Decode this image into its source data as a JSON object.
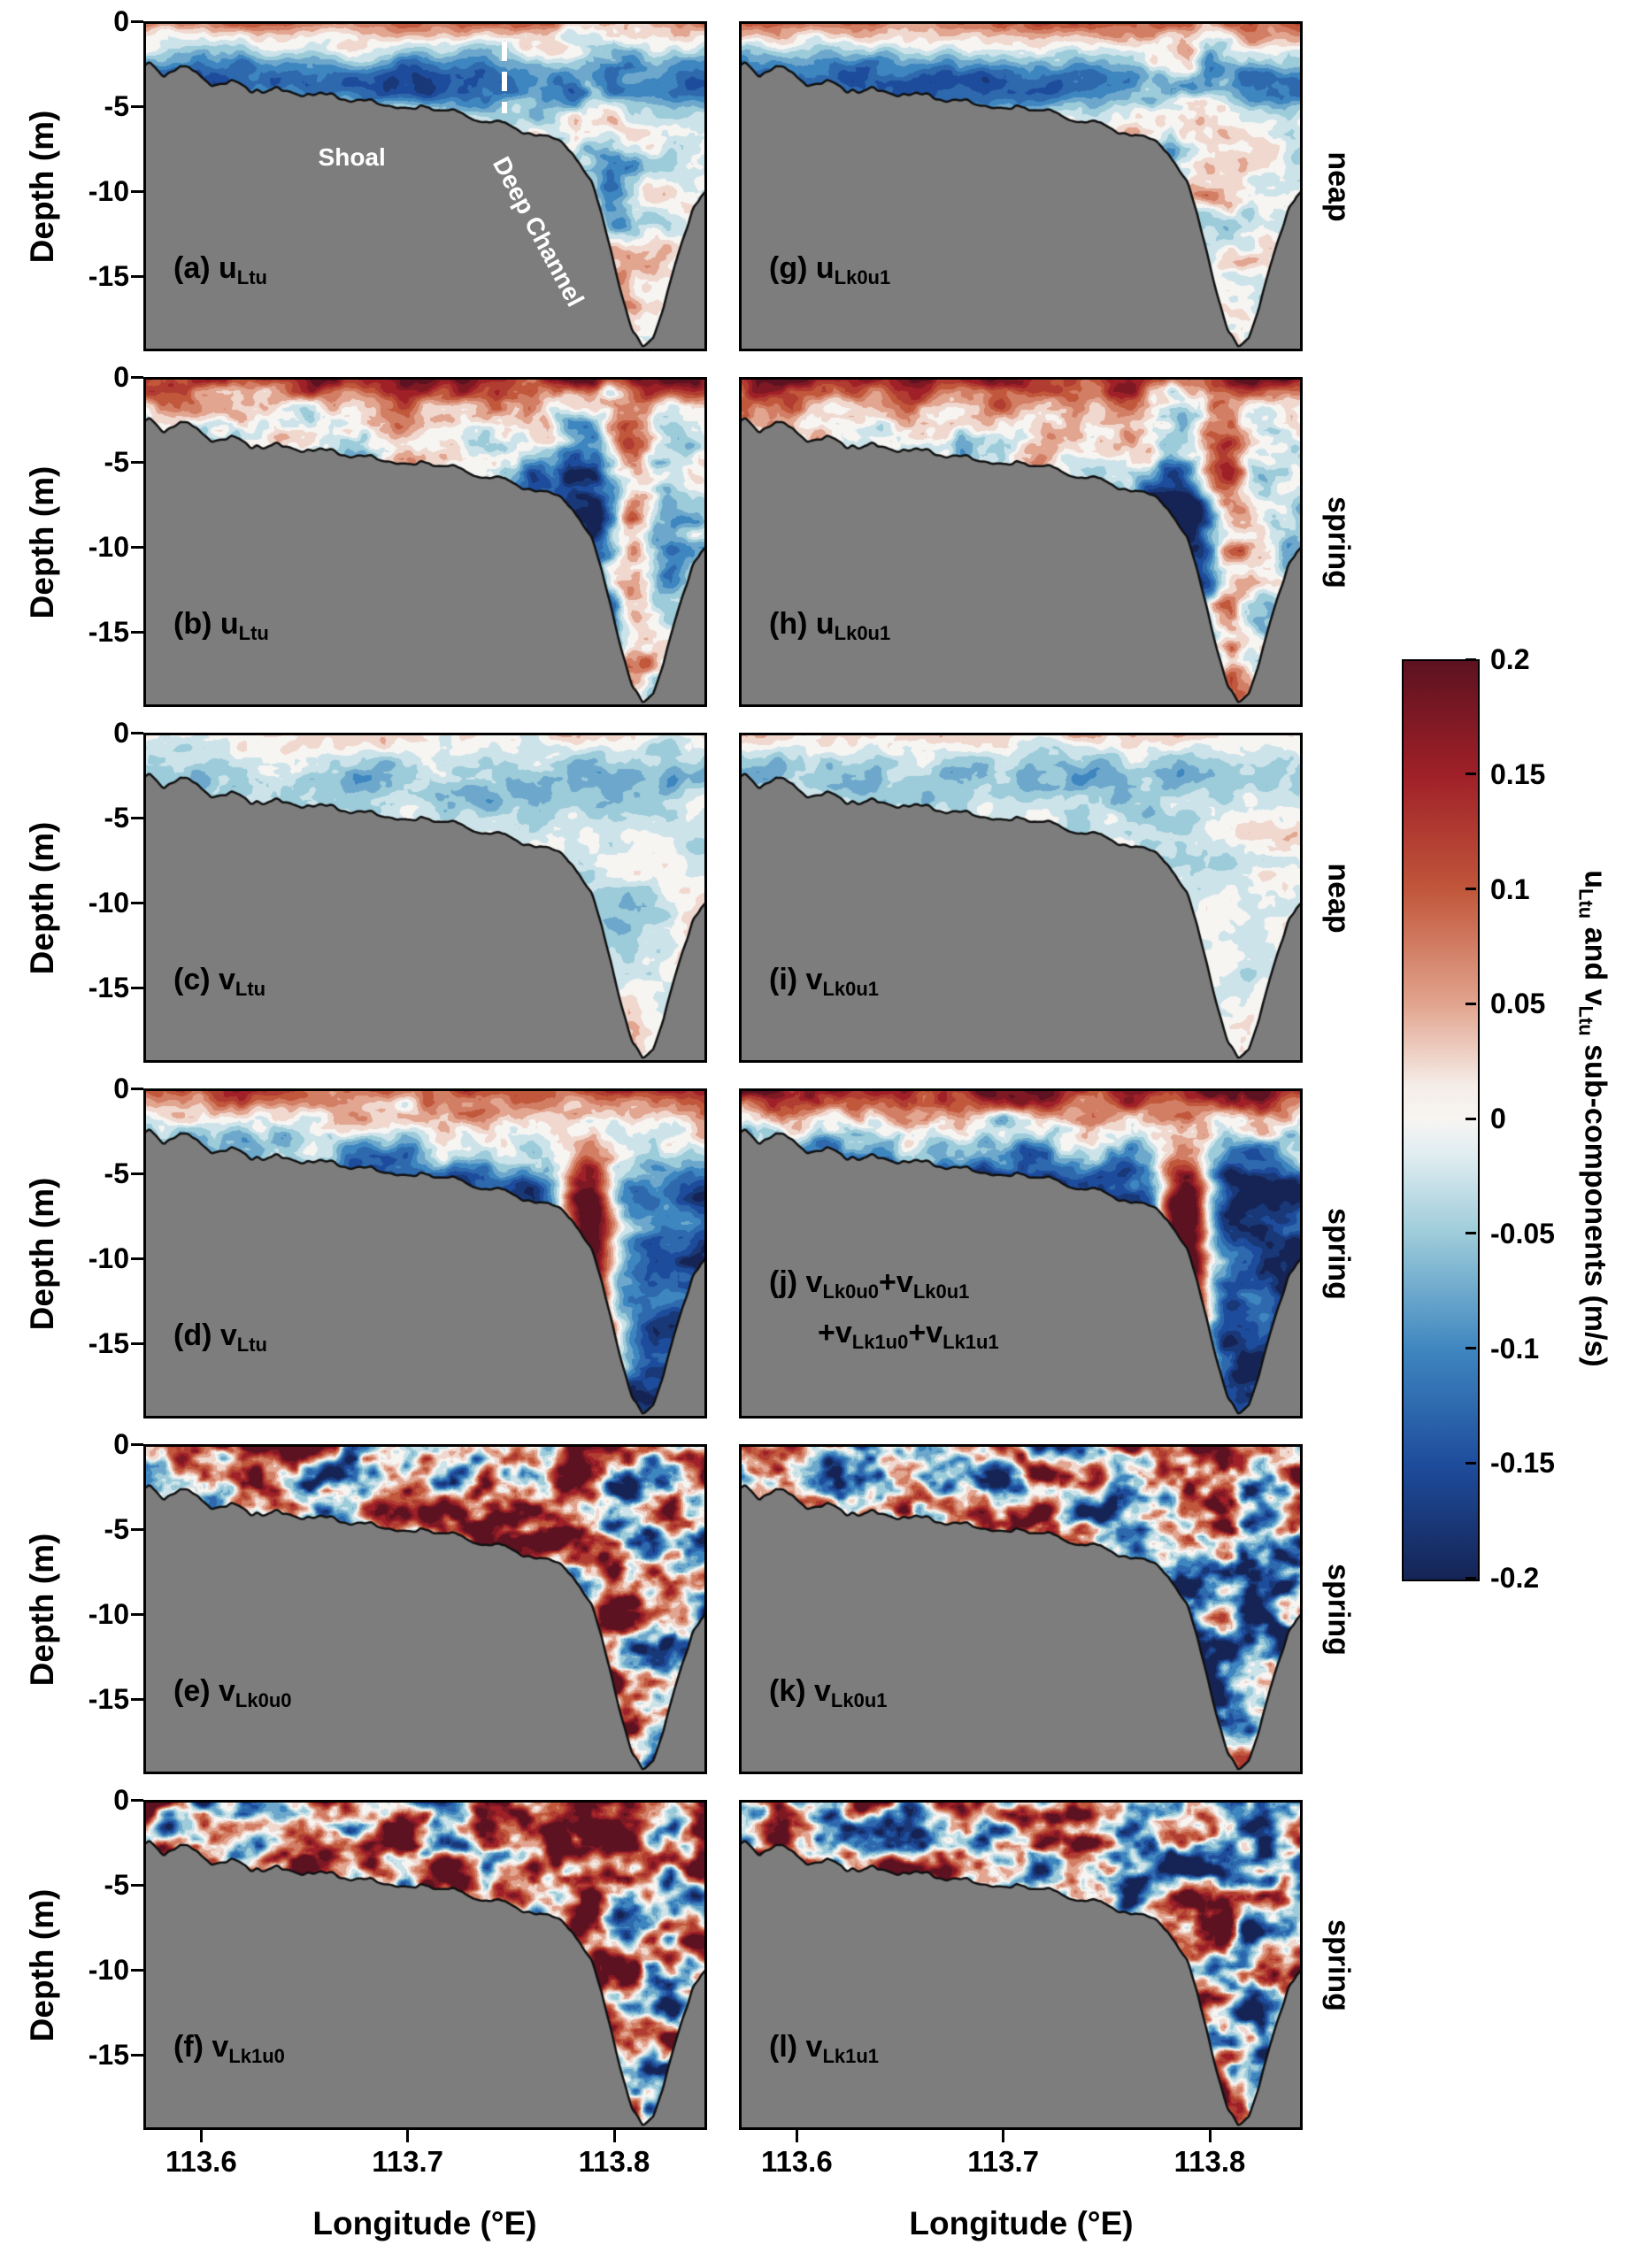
{
  "chart_data": {
    "type": "heatmap",
    "subtype": "filled_contour_cross_sections",
    "title": "",
    "xlabel": "Longitude (°E)",
    "ylabel": "Depth (m)",
    "x_ticks": [
      113.6,
      113.7,
      113.8
    ],
    "y_ticks": [
      0,
      -5,
      -10,
      -15
    ],
    "x_range": [
      113.572,
      113.845
    ],
    "y_range": [
      0,
      -19.4
    ],
    "grid": {
      "rows": 6,
      "cols": 2
    },
    "row_tide_labels": [
      "neap",
      "spring",
      "neap",
      "spring",
      "spring",
      "spring"
    ],
    "panels": [
      {
        "id": "a",
        "row": 0,
        "col": 0,
        "tide": "neap",
        "quantity": "u_Ltu",
        "label": [
          {
            "t": "(a) u"
          },
          {
            "t": "Ltu",
            "sub": true
          }
        ]
      },
      {
        "id": "g",
        "row": 0,
        "col": 1,
        "tide": "neap",
        "quantity": "u_Lk0u1",
        "label": [
          {
            "t": "(g) u"
          },
          {
            "t": "Lk0u1",
            "sub": true
          }
        ]
      },
      {
        "id": "b",
        "row": 1,
        "col": 0,
        "tide": "spring",
        "quantity": "u_Ltu",
        "label": [
          {
            "t": "(b) u"
          },
          {
            "t": "Ltu",
            "sub": true
          }
        ]
      },
      {
        "id": "h",
        "row": 1,
        "col": 1,
        "tide": "spring",
        "quantity": "u_Lk0u1",
        "label": [
          {
            "t": "(h) u"
          },
          {
            "t": "Lk0u1",
            "sub": true
          }
        ]
      },
      {
        "id": "c",
        "row": 2,
        "col": 0,
        "tide": "neap",
        "quantity": "v_Ltu",
        "label": [
          {
            "t": "(c) v"
          },
          {
            "t": "Ltu",
            "sub": true
          }
        ]
      },
      {
        "id": "i",
        "row": 2,
        "col": 1,
        "tide": "neap",
        "quantity": "v_Lk0u1",
        "label": [
          {
            "t": "(i) v"
          },
          {
            "t": "Lk0u1",
            "sub": true
          }
        ]
      },
      {
        "id": "d",
        "row": 3,
        "col": 0,
        "tide": "spring",
        "quantity": "v_Ltu",
        "label": [
          {
            "t": "(d) v"
          },
          {
            "t": "Ltu",
            "sub": true
          }
        ]
      },
      {
        "id": "j",
        "row": 3,
        "col": 1,
        "tide": "spring",
        "quantity": "v_Lk0u0+v_Lk0u1+v_Lk1u0+v_Lk1u1",
        "label": [
          {
            "t": "(j) v"
          },
          {
            "t": "Lk0u0",
            "sub": true
          },
          {
            "t": "+v"
          },
          {
            "t": "Lk0u1",
            "sub": true
          },
          {
            "br": true
          },
          {
            "t": "+v"
          },
          {
            "t": "Lk1u0",
            "sub": true
          },
          {
            "t": "+v"
          },
          {
            "t": "Lk1u1",
            "sub": true
          }
        ]
      },
      {
        "id": "e",
        "row": 4,
        "col": 0,
        "tide": "spring",
        "quantity": "v_Lk0u0",
        "label": [
          {
            "t": "(e) v"
          },
          {
            "t": "Lk0u0",
            "sub": true
          }
        ]
      },
      {
        "id": "k",
        "row": 4,
        "col": 1,
        "tide": "spring",
        "quantity": "v_Lk0u1",
        "label": [
          {
            "t": "(k) v"
          },
          {
            "t": "Lk0u1",
            "sub": true
          }
        ]
      },
      {
        "id": "f",
        "row": 5,
        "col": 0,
        "tide": "spring",
        "quantity": "v_Lk1u0",
        "label": [
          {
            "t": "(f) v"
          },
          {
            "t": "Lk1u0",
            "sub": true
          }
        ]
      },
      {
        "id": "l",
        "row": 5,
        "col": 1,
        "tide": "spring",
        "quantity": "v_Lk1u1",
        "label": [
          {
            "t": "(l) v"
          },
          {
            "t": "Lk1u1",
            "sub": true
          }
        ]
      }
    ],
    "annotations": [
      {
        "panel": "a",
        "kind": "text",
        "text": "Shoal",
        "color": "#ffffff",
        "lon": 113.673,
        "depth": -8.0,
        "rotation_deg": 0
      },
      {
        "panel": "a",
        "kind": "text",
        "text": "Deep Channel",
        "color": "#ffffff",
        "lon": 113.763,
        "depth": -12.4,
        "rotation_deg": 62
      },
      {
        "panel": "a",
        "kind": "dashed-line",
        "color": "#ffffff",
        "lon": 113.747,
        "depth_from": -1.2,
        "depth_to": -5.4
      }
    ],
    "colorbar": {
      "label": [
        {
          "t": "u"
        },
        {
          "t": "Ltu",
          "sub": true
        },
        {
          "t": " and v"
        },
        {
          "t": "Ltu",
          "sub": true
        },
        {
          "t": " sub-components (m/s)"
        }
      ],
      "units": "m/s",
      "ticks": [
        0.2,
        0.15,
        0.1,
        0.05,
        0,
        -0.05,
        -0.1,
        -0.15,
        -0.2
      ],
      "range": [
        -0.2,
        0.2
      ],
      "level_step": 0.025,
      "stops": [
        {
          "v": 0.2,
          "c": "#5C1220"
        },
        {
          "v": 0.15,
          "c": "#A02028"
        },
        {
          "v": 0.1,
          "c": "#C1573B"
        },
        {
          "v": 0.05,
          "c": "#E2A58F"
        },
        {
          "v": 0.015,
          "c": "#F5EDE8"
        },
        {
          "v": 0,
          "c": "#F7F5F2"
        },
        {
          "v": -0.015,
          "c": "#E0EDF1"
        },
        {
          "v": -0.05,
          "c": "#9CCBD9"
        },
        {
          "v": -0.1,
          "c": "#3E86C0"
        },
        {
          "v": -0.15,
          "c": "#1E4C9C"
        },
        {
          "v": -0.2,
          "c": "#152455"
        }
      ]
    },
    "bathymetry": {
      "fill_color": "#7d7d7d",
      "line_color": "#111111",
      "profile": [
        [
          113.575,
          -2.5
        ],
        [
          113.582,
          -3.3
        ],
        [
          113.59,
          -2.9
        ],
        [
          113.598,
          -3.1
        ],
        [
          113.605,
          -3.9
        ],
        [
          113.615,
          -3.7
        ],
        [
          113.625,
          -4.1
        ],
        [
          113.638,
          -4.0
        ],
        [
          113.65,
          -4.4
        ],
        [
          113.662,
          -4.3
        ],
        [
          113.672,
          -4.8
        ],
        [
          113.684,
          -4.7
        ],
        [
          113.695,
          -5.1
        ],
        [
          113.706,
          -5.0
        ],
        [
          113.716,
          -5.4
        ],
        [
          113.727,
          -5.6
        ],
        [
          113.737,
          -6.1
        ],
        [
          113.747,
          -6.0
        ],
        [
          113.756,
          -6.5
        ],
        [
          113.764,
          -6.7
        ],
        [
          113.771,
          -7.0
        ],
        [
          113.777,
          -7.3
        ],
        [
          113.783,
          -8.2
        ],
        [
          113.789,
          -9.6
        ],
        [
          113.794,
          -11.4
        ],
        [
          113.799,
          -13.6
        ],
        [
          113.804,
          -16.2
        ],
        [
          113.809,
          -18.3
        ],
        [
          113.814,
          -19.2
        ],
        [
          113.819,
          -18.6
        ],
        [
          113.824,
          -16.8
        ],
        [
          113.829,
          -14.6
        ],
        [
          113.834,
          -12.6
        ],
        [
          113.838,
          -11.2
        ],
        [
          113.842,
          -10.3
        ],
        [
          113.845,
          -9.9
        ]
      ]
    }
  }
}
